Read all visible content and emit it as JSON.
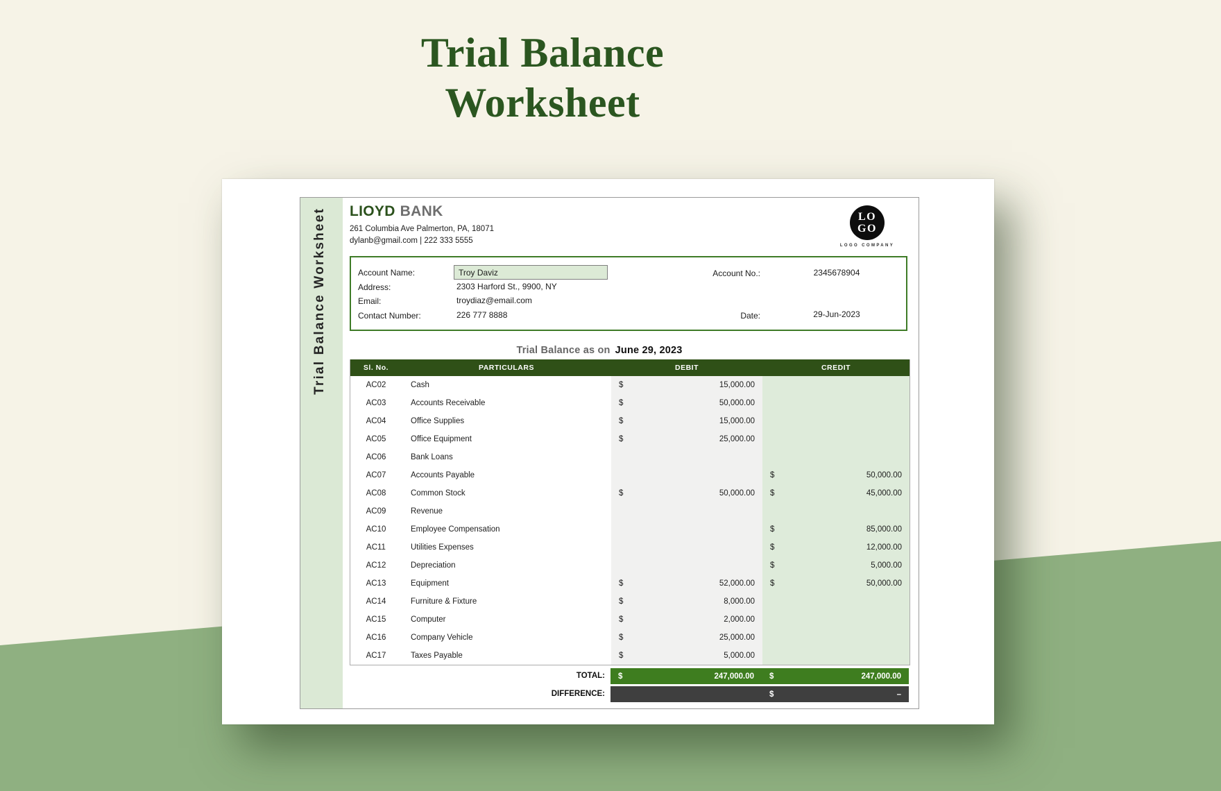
{
  "page_title": {
    "line1": "Trial Balance",
    "line2": "Worksheet"
  },
  "sidebar": {
    "vertical_label": "Trial Balance Worksheet"
  },
  "bank": {
    "name_primary": "LIOYD",
    "name_secondary": "BANK",
    "address": "261 Columbia Ave Palmerton, PA, 18071",
    "contact_line": "dylanb@gmail.com | 222 333 5555"
  },
  "logo": {
    "line1": "LO",
    "line2": "GO",
    "caption": "LOGO COMPANY"
  },
  "account_info": {
    "name_label": "Account Name:",
    "name_value": "Troy Daviz",
    "address_label": "Address:",
    "address_value": "2303 Harford St., 9900, NY",
    "email_label": "Email:",
    "email_value": "troydiaz@email.com",
    "contact_label": "Contact Number:",
    "contact_value": "226 777 8888",
    "account_no_label": "Account No.:",
    "account_no_value": "2345678904",
    "date_label": "Date:",
    "date_value": "29-Jun-2023"
  },
  "statement": {
    "prefix": "Trial Balance as on",
    "date": "June 29, 2023"
  },
  "table": {
    "headers": [
      "Sl. No.",
      "PARTICULARS",
      "DEBIT",
      "CREDIT"
    ],
    "currency": "$",
    "rows": [
      {
        "sl": "AC02",
        "particulars": "Cash",
        "debit": "15,000.00",
        "credit": null
      },
      {
        "sl": "AC03",
        "particulars": "Accounts Receivable",
        "debit": "50,000.00",
        "credit": null
      },
      {
        "sl": "AC04",
        "particulars": "Office Supplies",
        "debit": "15,000.00",
        "credit": null
      },
      {
        "sl": "AC05",
        "particulars": "Office Equipment",
        "debit": "25,000.00",
        "credit": null
      },
      {
        "sl": "AC06",
        "particulars": "Bank Loans",
        "debit": null,
        "credit": null
      },
      {
        "sl": "AC07",
        "particulars": "Accounts Payable",
        "debit": null,
        "credit": "50,000.00"
      },
      {
        "sl": "AC08",
        "particulars": "Common Stock",
        "debit": "50,000.00",
        "credit": "45,000.00"
      },
      {
        "sl": "AC09",
        "particulars": "Revenue",
        "debit": null,
        "credit": null
      },
      {
        "sl": "AC10",
        "particulars": "Employee Compensation",
        "debit": null,
        "credit": "85,000.00"
      },
      {
        "sl": "AC11",
        "particulars": "Utilities Expenses",
        "debit": null,
        "credit": "12,000.00"
      },
      {
        "sl": "AC12",
        "particulars": "Depreciation",
        "debit": null,
        "credit": "5,000.00"
      },
      {
        "sl": "AC13",
        "particulars": "Equipment",
        "debit": "52,000.00",
        "credit": "50,000.00"
      },
      {
        "sl": "AC14",
        "particulars": "Furniture & Fixture",
        "debit": "8,000.00",
        "credit": null
      },
      {
        "sl": "AC15",
        "particulars": "Computer",
        "debit": "2,000.00",
        "credit": null
      },
      {
        "sl": "AC16",
        "particulars": "Company Vehicle",
        "debit": "25,000.00",
        "credit": null
      },
      {
        "sl": "AC17",
        "particulars": "Taxes Payable",
        "debit": "5,000.00",
        "credit": null
      }
    ],
    "total_label": "TOTAL:",
    "total_debit": "247,000.00",
    "total_credit": "247,000.00",
    "difference_label": "DIFFERENCE:",
    "difference_credit": "–"
  },
  "colors": {
    "background_cream": "#F6F3E7",
    "background_sage": "#8FB081",
    "title_green": "#2B5620",
    "header_bar_green": "#2F5017",
    "total_bar_green": "#3E7D1F",
    "difference_bar_gray": "#3F3F3F",
    "light_green_fill": "#DBE9D5",
    "debit_column_gray": "#F1F1F0",
    "account_box_border": "#3E7B27"
  }
}
